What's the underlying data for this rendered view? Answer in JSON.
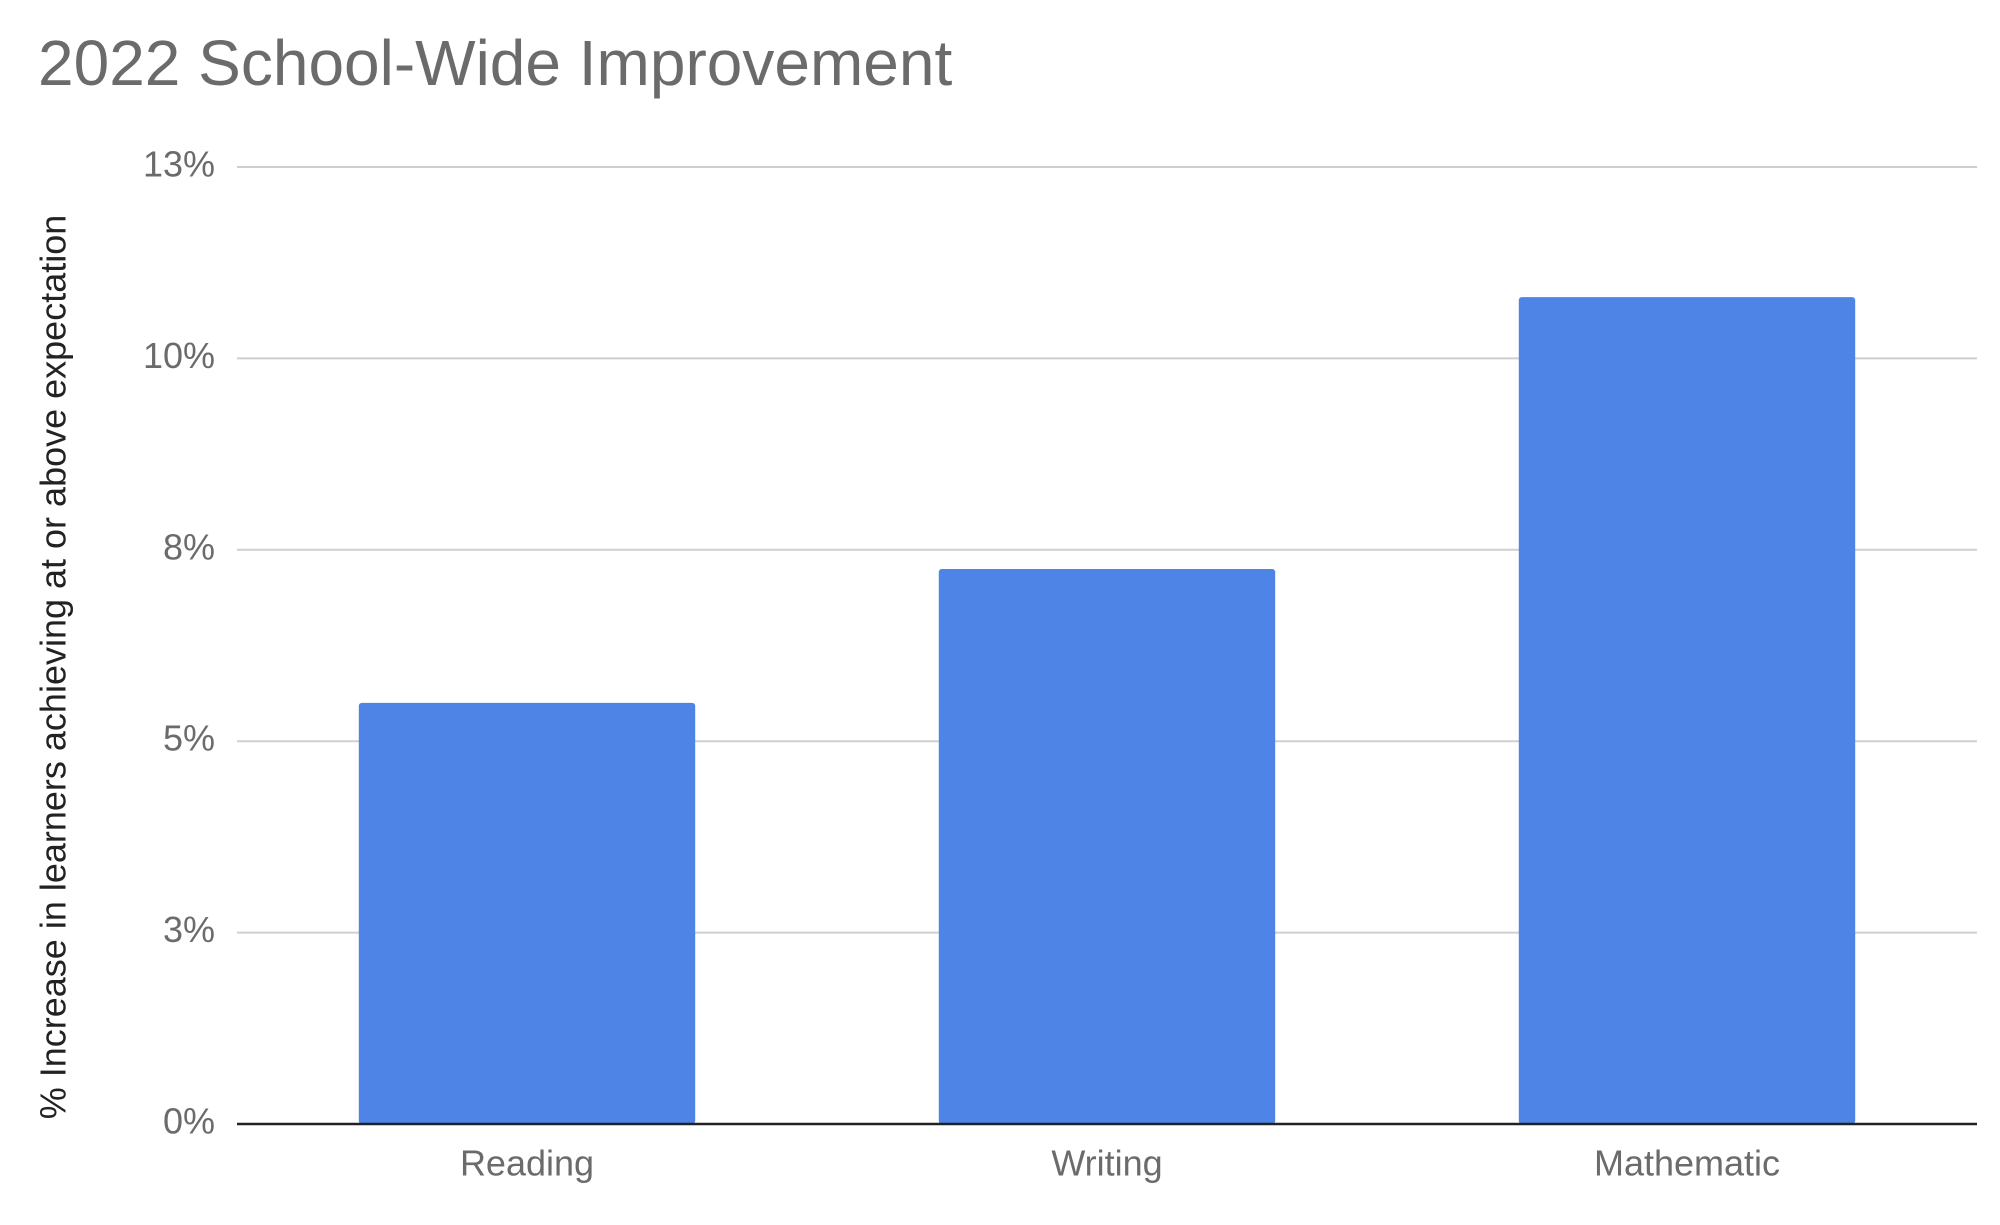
{
  "chart_data": {
    "type": "bar",
    "title": "2022 School-Wide Improvement",
    "y_label": "% Increase in learners achieving at or above expectation",
    "categories": [
      "Reading",
      "Writing",
      "Mathematic"
    ],
    "values": [
      5.5,
      7.25,
      10.8
    ],
    "color": "#4e84e6",
    "ylim": [
      0,
      12.5
    ],
    "yticks": [
      {
        "value": 0,
        "label": "0%"
      },
      {
        "value": 2.5,
        "label": "3%"
      },
      {
        "value": 5,
        "label": "5%"
      },
      {
        "value": 7.5,
        "label": "8%"
      },
      {
        "value": 10,
        "label": "10%"
      },
      {
        "value": 12.5,
        "label": "13%"
      }
    ],
    "grid": true
  }
}
